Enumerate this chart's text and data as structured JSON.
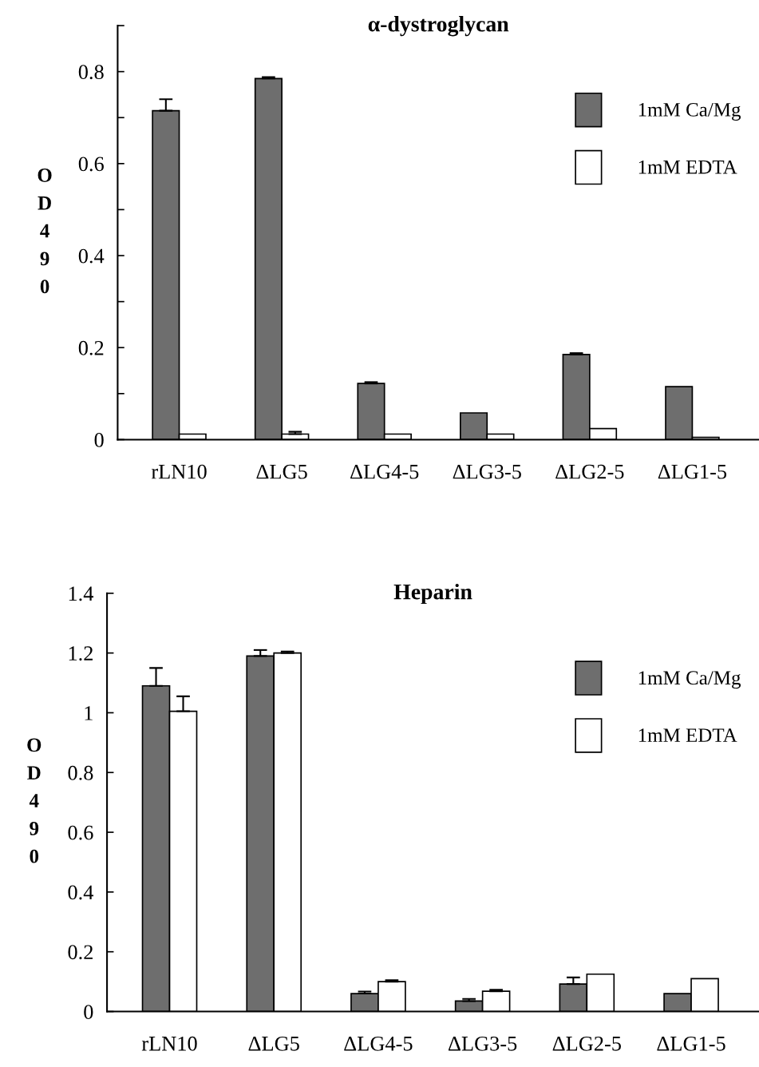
{
  "chart_data": [
    {
      "type": "bar",
      "title": "α-dystroglycan",
      "ylabel": "OD490",
      "categories": [
        "rLN10",
        "ΔLG5",
        "ΔLG4-5",
        "ΔLG3-5",
        "ΔLG2-5",
        "ΔLG1-5"
      ],
      "series": [
        {
          "name": "1mM Ca/Mg",
          "color": "#6e6e6e",
          "values": [
            0.715,
            0.785,
            0.122,
            0.058,
            0.185,
            0.115
          ],
          "errors": [
            0.025,
            0.003,
            0.003,
            null,
            0.003,
            null
          ]
        },
        {
          "name": "1mM EDTA",
          "color": "#ffffff",
          "values": [
            0.012,
            0.012,
            0.012,
            0.012,
            0.024,
            0.005
          ],
          "errors": [
            null,
            0.005,
            null,
            null,
            null,
            null
          ]
        }
      ],
      "ylim": [
        0,
        0.9
      ],
      "yticks": [
        0,
        {
          "value": 0.1,
          "label": null
        },
        0.2,
        {
          "value": 0.3,
          "label": null
        },
        0.4,
        {
          "value": 0.5,
          "label": null
        },
        0.6,
        {
          "value": 0.7,
          "label": null
        },
        0.8,
        {
          "value": 0.9,
          "label": null
        }
      ],
      "legend": "top right",
      "grid": false
    },
    {
      "type": "bar",
      "title": "Heparin",
      "ylabel": "OD490",
      "categories": [
        "rLN10",
        "ΔLG5",
        "ΔLG4-5",
        "ΔLG3-5",
        "ΔLG2-5",
        "ΔLG1-5"
      ],
      "series": [
        {
          "name": "1mM Ca/Mg",
          "color": "#6e6e6e",
          "values": [
            1.09,
            1.19,
            0.06,
            0.035,
            0.092,
            0.06
          ],
          "errors": [
            0.06,
            0.02,
            0.007,
            0.007,
            0.022,
            null
          ]
        },
        {
          "name": "1mM EDTA",
          "color": "#ffffff",
          "values": [
            1.005,
            1.2,
            0.1,
            0.068,
            0.125,
            0.11
          ],
          "errors": [
            0.05,
            0.005,
            0.005,
            0.005,
            null,
            null
          ]
        }
      ],
      "ylim": [
        0,
        1.4
      ],
      "yticks": [
        0,
        0.2,
        0.4,
        0.6,
        0.8,
        1,
        1.2,
        1.4
      ],
      "legend": "top right",
      "grid": false
    }
  ]
}
